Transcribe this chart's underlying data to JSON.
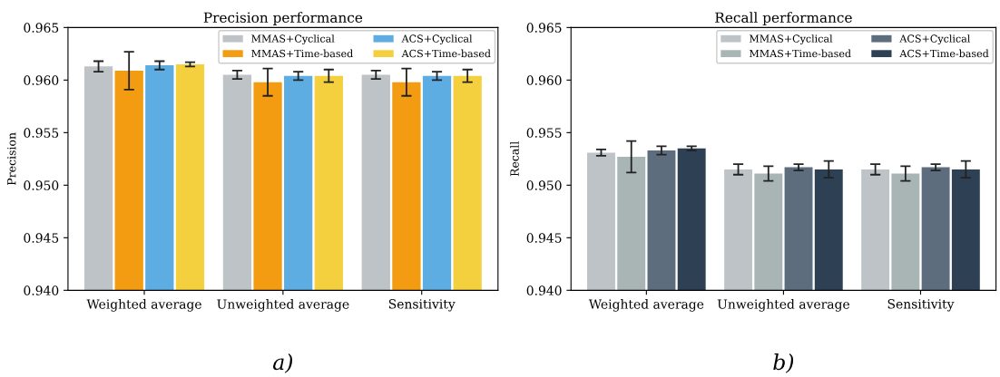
{
  "chart_data": [
    {
      "type": "bar",
      "title": "Precision performance",
      "ylabel": "Precision",
      "categories": [
        "Weighted average",
        "Unweighted average",
        "Sensitivity"
      ],
      "series": [
        {
          "name": "MMAS+Cyclical",
          "color": "#bdc3c7",
          "values": [
            0.9613,
            0.9605,
            0.9605
          ],
          "errors": [
            0.0005,
            0.0004,
            0.0004
          ]
        },
        {
          "name": "MMAS+Time-based",
          "color": "#f39c12",
          "values": [
            0.9609,
            0.9598,
            0.9598
          ],
          "errors": [
            0.0018,
            0.0013,
            0.0013
          ]
        },
        {
          "name": "ACS+Cyclical",
          "color": "#5dade2",
          "values": [
            0.9614,
            0.9604,
            0.9604
          ],
          "errors": [
            0.0004,
            0.0004,
            0.0004
          ]
        },
        {
          "name": "ACS+Time-based",
          "color": "#f4d03f",
          "values": [
            0.9615,
            0.9604,
            0.9604
          ],
          "errors": [
            0.0002,
            0.0006,
            0.0006
          ]
        }
      ],
      "ylim": [
        0.94,
        0.965
      ],
      "yticks": [
        {
          "value": 0.94,
          "label": "0.940"
        },
        {
          "value": 0.945,
          "label": "0.945"
        },
        {
          "value": 0.95,
          "label": "0.950"
        },
        {
          "value": 0.955,
          "label": "0.955"
        },
        {
          "value": 0.96,
          "label": "0.960"
        },
        {
          "value": 0.965,
          "label": "0.965"
        }
      ],
      "legend": "top right",
      "grid": false,
      "annotations": [
        "a)"
      ]
    },
    {
      "type": "bar",
      "title": "Recall performance",
      "ylabel": "Recall",
      "categories": [
        "Weighted average",
        "Unweighted average",
        "Sensitivity"
      ],
      "series": [
        {
          "name": "MMAS+Cyclical",
          "color": "#bdc3c7",
          "values": [
            0.9531,
            0.9515,
            0.9515
          ],
          "errors": [
            0.0003,
            0.0005,
            0.0005
          ]
        },
        {
          "name": "MMAS+Time-based",
          "color": "#a9b5b5",
          "values": [
            0.9527,
            0.9511,
            0.9511
          ],
          "errors": [
            0.0015,
            0.0007,
            0.0007
          ]
        },
        {
          "name": "ACS+Cyclical",
          "color": "#5d6d7e",
          "values": [
            0.9533,
            0.9517,
            0.9517
          ],
          "errors": [
            0.0004,
            0.0003,
            0.0003
          ]
        },
        {
          "name": "ACS+Time-based",
          "color": "#2e4053",
          "values": [
            0.9535,
            0.9515,
            0.9515
          ],
          "errors": [
            0.0002,
            0.0008,
            0.0008
          ]
        }
      ],
      "ylim": [
        0.94,
        0.965
      ],
      "yticks": [
        {
          "value": 0.94,
          "label": "0.940"
        },
        {
          "value": 0.945,
          "label": "0.945"
        },
        {
          "value": 0.95,
          "label": "0.950"
        },
        {
          "value": 0.955,
          "label": "0.955"
        },
        {
          "value": 0.96,
          "label": "0.960"
        },
        {
          "value": 0.965,
          "label": "0.965"
        }
      ],
      "legend": "top right",
      "grid": false,
      "annotations": [
        "b)"
      ]
    }
  ]
}
